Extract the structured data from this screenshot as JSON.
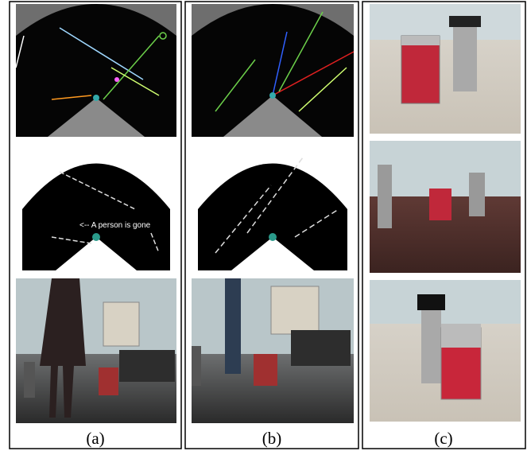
{
  "panels": [
    {
      "label": "(a)",
      "annotation": "<-- A person is gone"
    },
    {
      "label": "(b)"
    },
    {
      "label": "(c)"
    }
  ]
}
